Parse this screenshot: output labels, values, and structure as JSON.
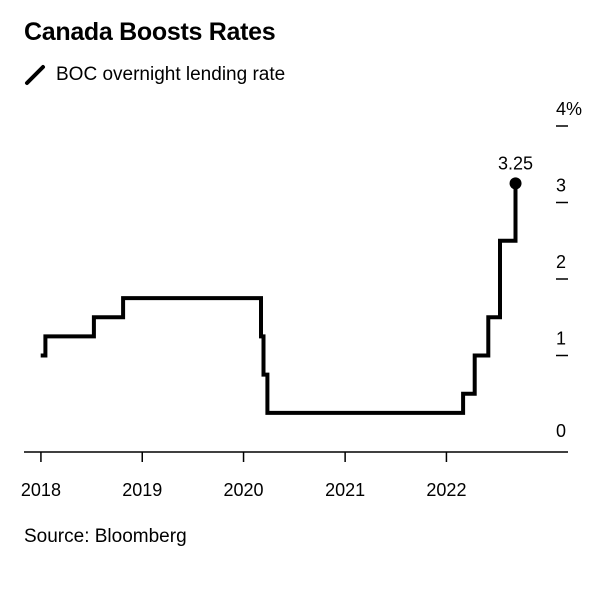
{
  "title": "Canada Boosts Rates",
  "legend": {
    "label": "BOC overnight lending rate",
    "color": "#000000"
  },
  "source": "Source: Bloomberg",
  "chart_data": {
    "type": "line",
    "line_style": "step",
    "title": "Canada Boosts Rates",
    "series": [
      {
        "name": "BOC overnight lending rate",
        "color": "#000000",
        "points": [
          [
            "2017-12-31",
            1.0
          ],
          [
            "2018-01-17",
            1.25
          ],
          [
            "2018-07-11",
            1.5
          ],
          [
            "2018-10-24",
            1.75
          ],
          [
            "2020-03-04",
            1.25
          ],
          [
            "2020-03-13",
            0.75
          ],
          [
            "2020-03-27",
            0.25
          ],
          [
            "2022-03-02",
            0.5
          ],
          [
            "2022-04-13",
            1.0
          ],
          [
            "2022-06-01",
            1.5
          ],
          [
            "2022-07-13",
            2.5
          ],
          [
            "2022-09-07",
            3.25
          ]
        ]
      }
    ],
    "end_label": "3.25",
    "x_axis": {
      "ticks": [
        "2018",
        "2019",
        "2020",
        "2021",
        "2022"
      ],
      "range": [
        "2017-11-01",
        "2023-03-15"
      ]
    },
    "y_axis": {
      "ticks": [
        "0",
        "1",
        "2",
        "3",
        "4%"
      ],
      "ylim": [
        0,
        4
      ],
      "position": "right"
    },
    "grid": false
  }
}
